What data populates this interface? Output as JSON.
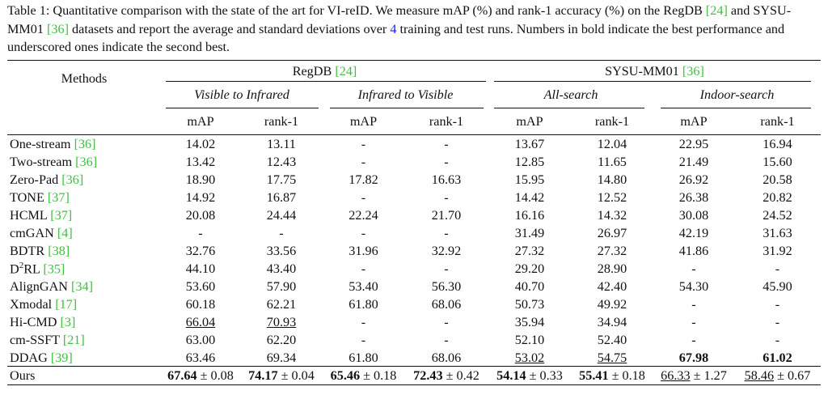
{
  "caption": {
    "part1": "Table 1: Quantitative comparison with the state of the art for VI-reID. We measure mAP (%) and rank-1 accuracy (%) on the RegDB ",
    "ref1": "[24]",
    "part2": " and SYSU-MM01 ",
    "ref2": "[36]",
    "part3": " datasets and report the average and standard deviations over ",
    "count": "4",
    "part4": " training and test runs. Numbers in bold indicate the best performance and underscored ones indicate the second best."
  },
  "header": {
    "methods": "Methods",
    "regdb": "RegDB ",
    "regdb_ref": "[24]",
    "sysu": "SYSU-MM01 ",
    "sysu_ref": "[36]",
    "v2i": "Visible to Infrared",
    "i2v": "Infrared to Visible",
    "all": "All-search",
    "indoor": "Indoor-search",
    "map": "mAP",
    "rank": "rank-1"
  },
  "rows": [
    {
      "name": "One-stream ",
      "ref": "[36]",
      "v": [
        "14.02",
        "13.11",
        "-",
        "-",
        "13.67",
        "12.04",
        "22.95",
        "16.94"
      ]
    },
    {
      "name": "Two-stream ",
      "ref": "[36]",
      "v": [
        "13.42",
        "12.43",
        "-",
        "-",
        "12.85",
        "11.65",
        "21.49",
        "15.60"
      ]
    },
    {
      "name": "Zero-Pad ",
      "ref": "[36]",
      "v": [
        "18.90",
        "17.75",
        "17.82",
        "16.63",
        "15.95",
        "14.80",
        "26.92",
        "20.58"
      ]
    },
    {
      "name": "TONE ",
      "ref": "[37]",
      "v": [
        "14.92",
        "16.87",
        "-",
        "-",
        "14.42",
        "12.52",
        "26.38",
        "20.82"
      ]
    },
    {
      "name": "HCML ",
      "ref": "[37]",
      "v": [
        "20.08",
        "24.44",
        "22.24",
        "21.70",
        "16.16",
        "14.32",
        "30.08",
        "24.52"
      ]
    },
    {
      "name": "cmGAN ",
      "ref": "[4]",
      "v": [
        "-",
        "-",
        "-",
        "-",
        "31.49",
        "26.97",
        "42.19",
        "31.63"
      ]
    },
    {
      "name": "BDTR ",
      "ref": "[38]",
      "v": [
        "32.76",
        "33.56",
        "31.96",
        "32.92",
        "27.32",
        "27.32",
        "41.86",
        "31.92"
      ]
    },
    {
      "name": "D",
      "sup": "2",
      "name2": "RL ",
      "ref": "[35]",
      "v": [
        "44.10",
        "43.40",
        "-",
        "-",
        "29.20",
        "28.90",
        "-",
        "-"
      ]
    },
    {
      "name": "AlignGAN ",
      "ref": "[34]",
      "v": [
        "53.60",
        "57.90",
        "53.40",
        "56.30",
        "40.70",
        "42.40",
        "54.30",
        "45.90"
      ]
    },
    {
      "name": "Xmodal ",
      "ref": "[17]",
      "v": [
        "60.18",
        "62.21",
        "61.80",
        "68.06",
        "50.73",
        "49.92",
        "-",
        "-"
      ]
    },
    {
      "name": "Hi-CMD ",
      "ref": "[3]",
      "v": [
        "66.04",
        "70.93",
        "-",
        "-",
        "35.94",
        "34.94",
        "-",
        "-"
      ]
    },
    {
      "name": "cm-SSFT ",
      "ref": "[21]",
      "v": [
        "63.00",
        "62.20",
        "-",
        "-",
        "52.10",
        "52.40",
        "-",
        "-"
      ]
    },
    {
      "name": "DDAG ",
      "ref": "[39]",
      "v": [
        "63.46",
        "69.34",
        "61.80",
        "68.06",
        "53.02",
        "54.75",
        "67.98",
        "61.02"
      ]
    }
  ],
  "ours": {
    "name": "Ours",
    "v": [
      "67.64",
      "74.17",
      "65.46",
      "72.43",
      "54.14",
      "55.41",
      "66.33",
      "58.46"
    ],
    "sd": [
      "± 0.08",
      "± 0.04",
      "± 0.18",
      "± 0.42",
      "± 0.33",
      "± 0.18",
      "± 1.27",
      "± 0.67"
    ]
  }
}
